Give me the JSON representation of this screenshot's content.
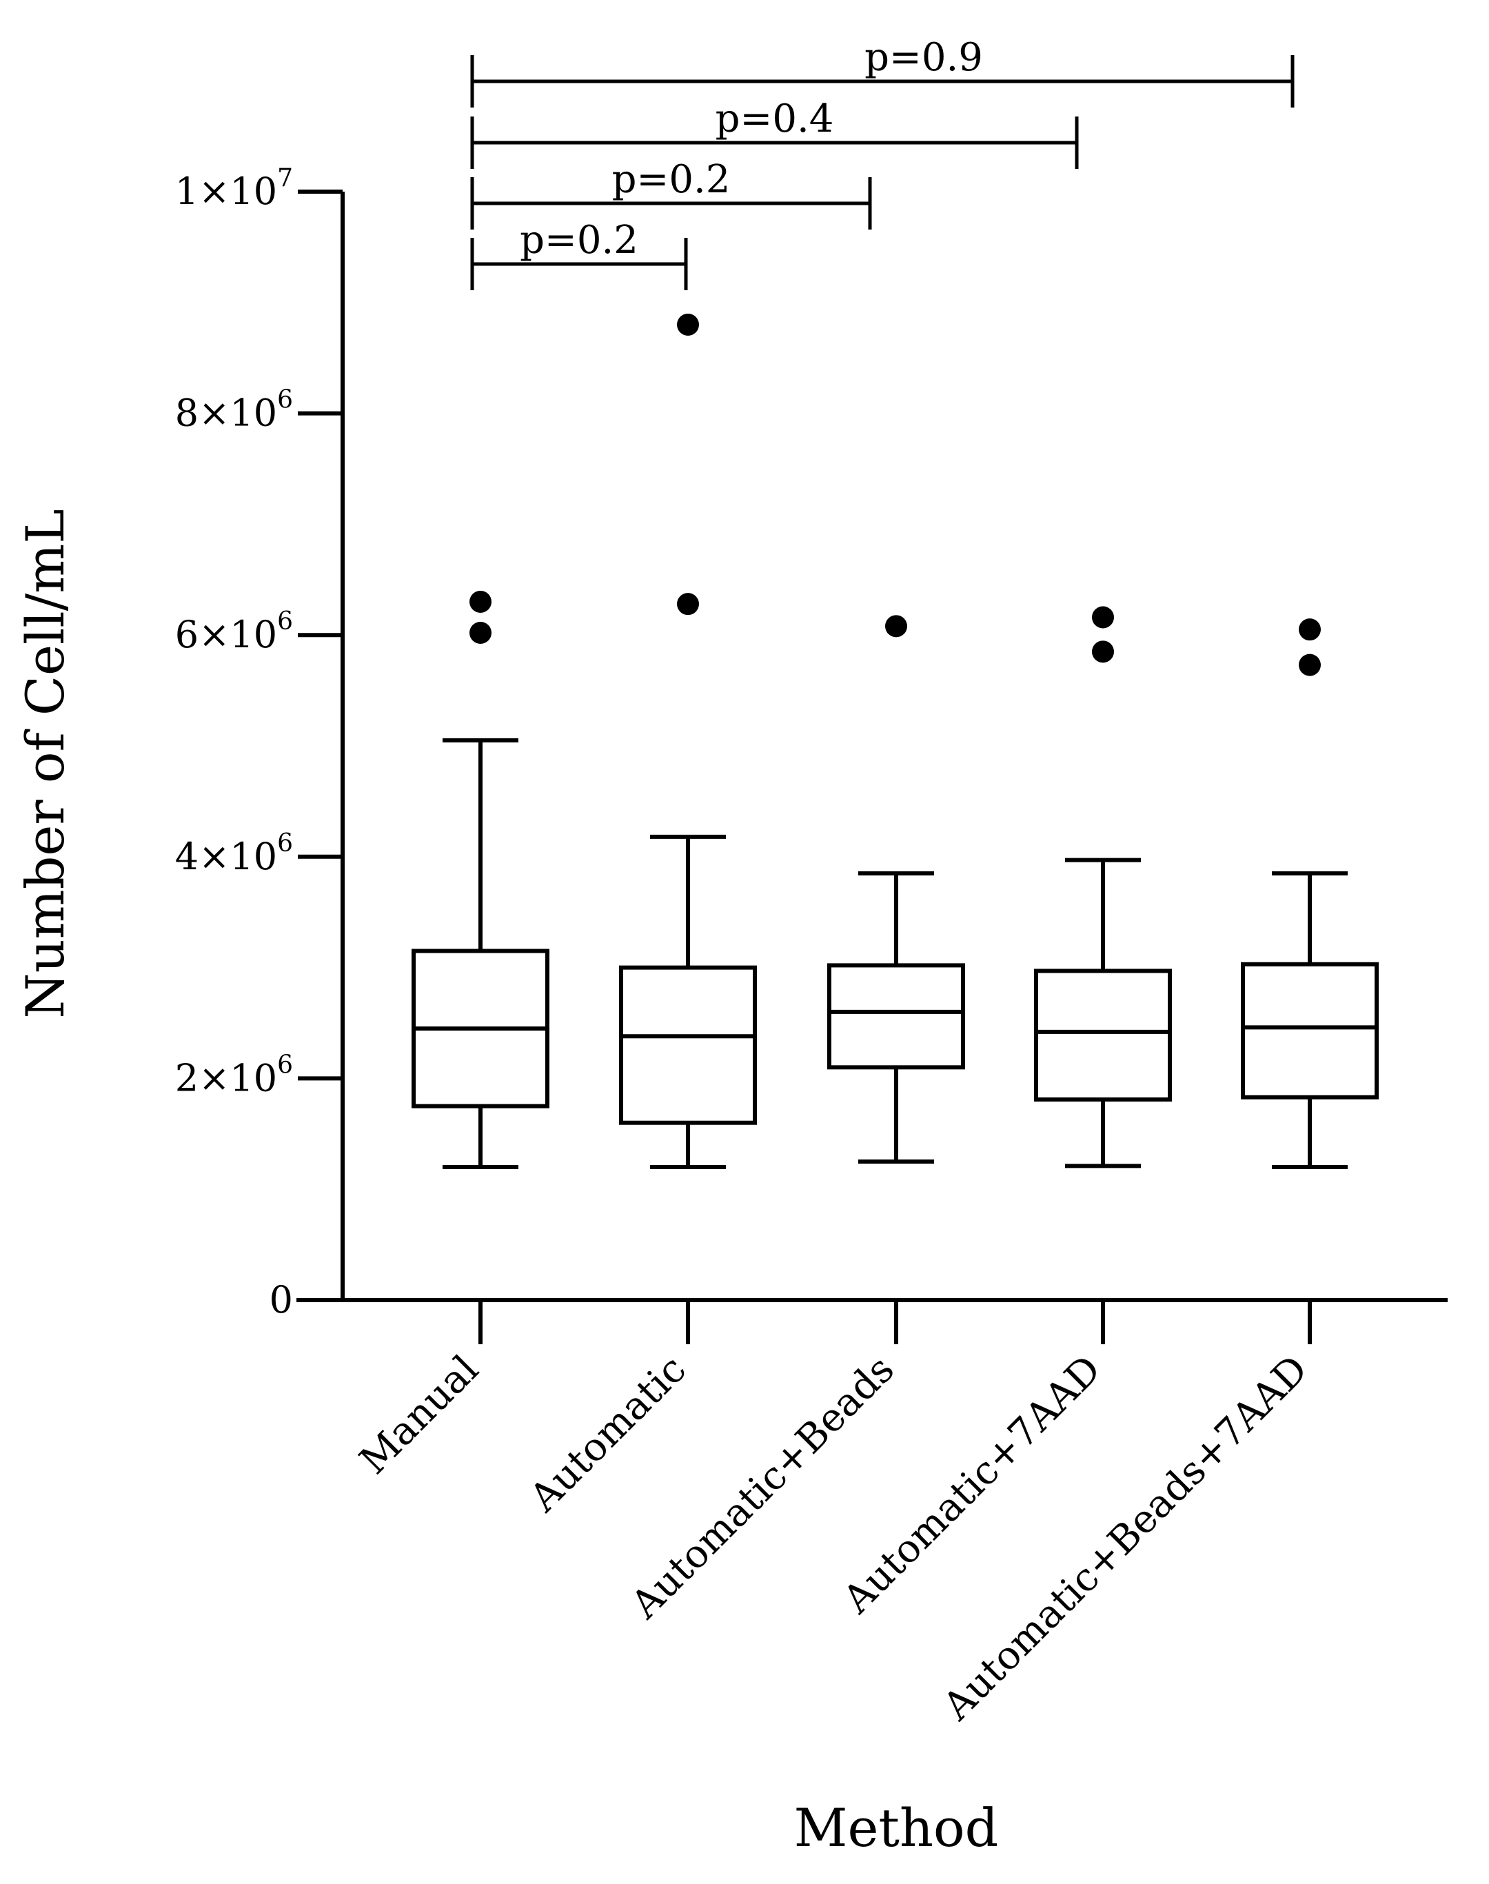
{
  "chart_data": {
    "type": "box",
    "title": "",
    "xlabel": "Method",
    "ylabel": "Number of Cell/mL",
    "ylim": [
      0,
      10000000
    ],
    "y_ticks": [
      {
        "value": 0,
        "label": "0"
      },
      {
        "value": 2000000,
        "label": "2×10",
        "exp": "6"
      },
      {
        "value": 4000000,
        "label": "4×10",
        "exp": "6"
      },
      {
        "value": 6000000,
        "label": "6×10",
        "exp": "6"
      },
      {
        "value": 8000000,
        "label": "8×10",
        "exp": "6"
      },
      {
        "value": 10000000,
        "label": "1×10",
        "exp": "7"
      }
    ],
    "categories": [
      "Manual",
      "Automatic",
      "Automatic+Beads",
      "Automatic+7AAD",
      "Automatic+Beads+7AAD"
    ],
    "series": [
      {
        "name": "Manual",
        "whisker_low": 1200000,
        "q1": 1750000,
        "median": 2450000,
        "q3": 3150000,
        "whisker_high": 5050000,
        "outliers": [
          6300000,
          6020000
        ]
      },
      {
        "name": "Automatic",
        "whisker_low": 1200000,
        "q1": 1600000,
        "median": 2380000,
        "q3": 3000000,
        "whisker_high": 4180000,
        "outliers": [
          8800000,
          6280000
        ]
      },
      {
        "name": "Automatic+Beads",
        "whisker_low": 1250000,
        "q1": 2100000,
        "median": 2600000,
        "q3": 3020000,
        "whisker_high": 3850000,
        "outliers": [
          6080000
        ]
      },
      {
        "name": "Automatic+7AAD",
        "whisker_low": 1210000,
        "q1": 1810000,
        "median": 2420000,
        "q3": 2970000,
        "whisker_high": 3970000,
        "outliers": [
          6160000,
          5850000
        ]
      },
      {
        "name": "Automatic+Beads+7AAD",
        "whisker_low": 1200000,
        "q1": 1830000,
        "median": 2460000,
        "q3": 3030000,
        "whisker_high": 3850000,
        "outliers": [
          6050000,
          5730000
        ]
      }
    ],
    "comparisons": [
      {
        "from": "Manual",
        "to": "Automatic+Beads+7AAD",
        "label": "p=0.9"
      },
      {
        "from": "Manual",
        "to": "Automatic+7AAD",
        "label": "p=0.4"
      },
      {
        "from": "Manual",
        "to": "Automatic+Beads",
        "label": "p=0.2"
      },
      {
        "from": "Manual",
        "to": "Automatic",
        "label": "p=0.2"
      }
    ],
    "colors": {
      "ink": "#000000",
      "background": "#ffffff"
    }
  }
}
